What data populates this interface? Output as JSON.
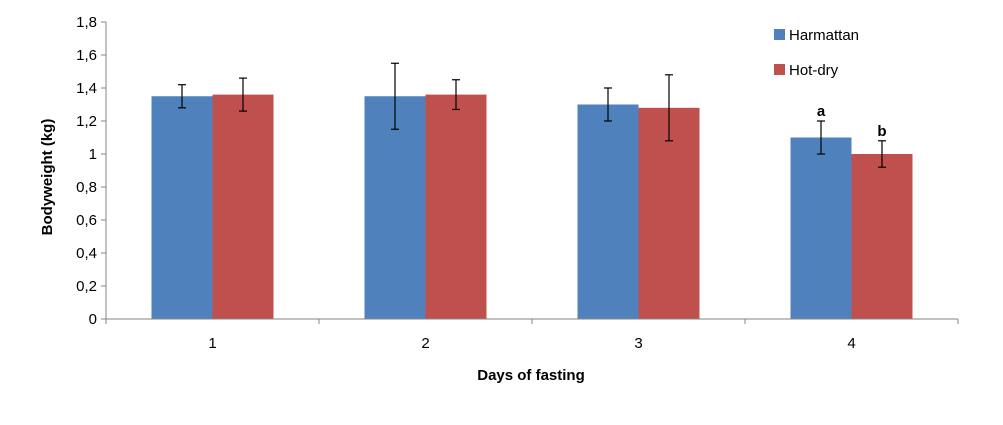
{
  "chart_data": {
    "type": "bar",
    "title": "",
    "xlabel": "Days of fasting",
    "ylabel": "Bodyweight (kg)",
    "categories": [
      "1",
      "2",
      "3",
      "4"
    ],
    "ylim": [
      0,
      1.8
    ],
    "yticks": [
      0,
      0.2,
      0.4,
      0.6,
      0.8,
      1,
      1.2,
      1.4,
      1.6,
      1.8
    ],
    "ytick_labels": [
      "0",
      "0,2",
      "0,4",
      "0,6",
      "0,8",
      "1",
      "1,2",
      "1,4",
      "1,6",
      "1,8"
    ],
    "grid": false,
    "legend_position": "top-right",
    "series": [
      {
        "name": "Harmattan",
        "color": "#4F81BD",
        "values": [
          1.35,
          1.35,
          1.3,
          1.1
        ],
        "errors": [
          0.07,
          0.2,
          0.1,
          0.1
        ],
        "labels": [
          "",
          "",
          "",
          "a"
        ]
      },
      {
        "name": "Hot-dry",
        "color": "#C0504D",
        "values": [
          1.36,
          1.36,
          1.28,
          1.0
        ],
        "errors": [
          0.1,
          0.09,
          0.2,
          0.08
        ],
        "labels": [
          "",
          "",
          "",
          "b"
        ]
      }
    ]
  }
}
